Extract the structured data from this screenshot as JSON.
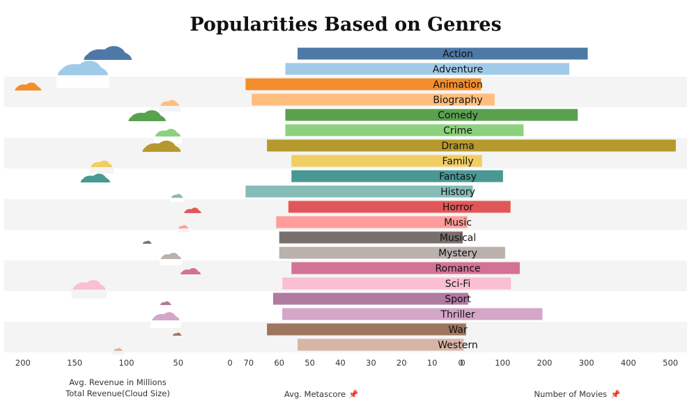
{
  "chart_data": {
    "type": "bar",
    "title": "Popularities Based on Genres",
    "categories": [
      "Action",
      "Adventure",
      "Animation",
      "Biography",
      "Comedy",
      "Crime",
      "Drama",
      "Family",
      "Fantasy",
      "History",
      "Horror",
      "Music",
      "Musical",
      "Mystery",
      "Romance",
      "Sci-Fi",
      "Sport",
      "Thriller",
      "War",
      "Western"
    ],
    "colors": [
      "#4e79a7",
      "#a0cbe8",
      "#f28e2b",
      "#ffbe7d",
      "#59a14f",
      "#8cd17d",
      "#b6992d",
      "#f1ce63",
      "#499894",
      "#86bcb6",
      "#e15759",
      "#ff9d9a",
      "#79706e",
      "#bab0ac",
      "#d37295",
      "#fabfd2",
      "#b07aa1",
      "#d4a6c8",
      "#9d7660",
      "#d7b5a6"
    ],
    "panels": [
      {
        "name": "revenue",
        "label_lines": [
          "Avg. Revenue in Millions",
          "Total Revenue(Cloud Size)"
        ],
        "ticks": [
          200,
          150,
          100,
          50,
          0
        ],
        "xlim": [
          0,
          210
        ],
        "reversed": true,
        "avg_revenue": [
          118,
          142,
          195,
          58,
          80,
          60,
          66,
          124,
          130,
          51,
          36,
          45,
          80,
          57,
          38,
          136,
          62,
          62,
          51,
          108
        ],
        "cloud_size": [
          0.95,
          1.0,
          0.48,
          0.32,
          0.72,
          0.46,
          0.74,
          0.38,
          0.55,
          0.16,
          0.28,
          0.12,
          0.1,
          0.35,
          0.35,
          0.62,
          0.15,
          0.5,
          0.1,
          0.1
        ]
      },
      {
        "name": "metascore",
        "label": "Avg. Metascore",
        "ticks": [
          70,
          60,
          50,
          40,
          30,
          20,
          10,
          0
        ],
        "xlim": [
          0,
          72
        ],
        "reversed": true,
        "values": [
          54,
          58,
          71,
          69,
          58,
          58,
          64,
          56,
          56,
          71,
          57,
          61,
          60,
          60,
          56,
          59,
          62,
          59,
          64,
          54
        ]
      },
      {
        "name": "movies",
        "label": "Number of Movies",
        "ticks": [
          0,
          100,
          200,
          300,
          400,
          500
        ],
        "xlim": [
          0,
          510
        ],
        "values": [
          303,
          259,
          49,
          81,
          279,
          150,
          513,
          51,
          101,
          29,
          119,
          16,
          5,
          106,
          141,
          120,
          18,
          195,
          13,
          7
        ]
      }
    ]
  }
}
